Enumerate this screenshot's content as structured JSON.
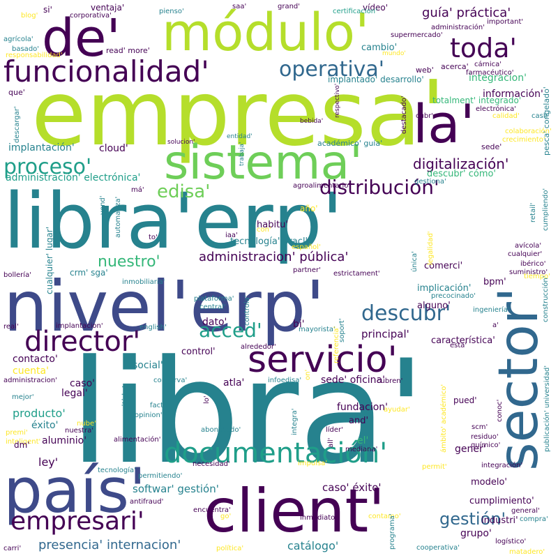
{
  "palette": {
    "deep_purple": "#440154",
    "indigo": "#3e4a89",
    "blue": "#31688e",
    "teal": "#26828e",
    "green_teal": "#1f9e89",
    "green": "#35b779",
    "light_green": "#6ece58",
    "lime": "#b5de2b",
    "yellow": "#fde725"
  },
  "words": [
    {
      "text": "libra'",
      "c": "teal"
    },
    {
      "text": "empresa'",
      "c": "lime"
    },
    {
      "text": "libra'erp'",
      "c": "teal"
    },
    {
      "text": "nivel'erp'",
      "c": "indigo"
    },
    {
      "text": "módulo'",
      "c": "lime"
    },
    {
      "text": "sector'",
      "c": "blue"
    },
    {
      "text": "client'",
      "c": "deep_purple"
    },
    {
      "text": "país'",
      "c": "indigo"
    },
    {
      "text": "de'",
      "c": "deep_purple"
    },
    {
      "text": "la'",
      "c": "deep_purple"
    },
    {
      "text": "sistema'",
      "c": "light_green"
    },
    {
      "text": "servicio'",
      "c": "deep_purple"
    },
    {
      "text": "funcionalidad'",
      "c": "deep_purple"
    },
    {
      "text": "director'",
      "c": "deep_purple"
    },
    {
      "text": "documentación'",
      "c": "green_teal"
    },
    {
      "text": "empresari'",
      "c": "deep_purple"
    },
    {
      "text": "toda'",
      "c": "deep_purple"
    },
    {
      "text": "operativa'",
      "c": "blue"
    },
    {
      "text": "proceso'",
      "c": "green_teal"
    },
    {
      "text": "distribución'",
      "c": "deep_purple"
    },
    {
      "text": "descubr'",
      "c": "blue"
    },
    {
      "text": "acced'",
      "c": "green_teal"
    },
    {
      "text": "edisa'",
      "c": "light_green"
    },
    {
      "text": "digitalización'",
      "c": "deep_purple"
    },
    {
      "text": "gestión'",
      "c": "blue"
    },
    {
      "text": "administracion' pública'",
      "c": "deep_purple"
    },
    {
      "text": "nuestro'",
      "c": "green"
    },
    {
      "text": "presencia' internacion'",
      "c": "blue"
    },
    {
      "text": "guía' práctica'",
      "c": "deep_purple"
    },
    {
      "text": "cloud'",
      "c": "deep_purple"
    },
    {
      "text": "implantación'",
      "c": "teal"
    },
    {
      "text": "administración' electrónica'",
      "c": "green_teal"
    },
    {
      "text": "información'",
      "c": "deep_purple"
    },
    {
      "text": "integracion'",
      "c": "green"
    },
    {
      "text": "totalment' integrado'",
      "c": "green"
    },
    {
      "text": "implantado' desarrollo'",
      "c": "teal"
    },
    {
      "text": "cambio'",
      "c": "teal"
    },
    {
      "text": "web'",
      "c": "deep_purple"
    },
    {
      "text": "acerca'",
      "c": "deep_purple"
    },
    {
      "text": "producto'",
      "c": "green_teal"
    },
    {
      "text": "cuenta'",
      "c": "yellow"
    },
    {
      "text": "contacto'",
      "c": "deep_purple"
    },
    {
      "text": "éxito'",
      "c": "teal"
    },
    {
      "text": "aluminio'",
      "c": "deep_purple"
    },
    {
      "text": "legal'",
      "c": "deep_purple"
    },
    {
      "text": "caso'",
      "c": "deep_purple"
    },
    {
      "text": "ley'",
      "c": "deep_purple"
    },
    {
      "text": "softwar' gestión'",
      "c": "teal"
    },
    {
      "text": "caso' éxito'",
      "c": "deep_purple"
    },
    {
      "text": "principal'",
      "c": "deep_purple"
    },
    {
      "text": "característica'",
      "c": "deep_purple"
    },
    {
      "text": "bpm'",
      "c": "deep_purple"
    },
    {
      "text": "comerci'",
      "c": "deep_purple"
    },
    {
      "text": "implicación'",
      "c": "teal"
    },
    {
      "text": "alguno'",
      "c": "deep_purple"
    },
    {
      "text": "dato'",
      "c": "deep_purple"
    },
    {
      "text": "bi'",
      "c": "deep_purple"
    },
    {
      "text": "social'",
      "c": "teal"
    },
    {
      "text": "control'",
      "c": "deep_purple"
    },
    {
      "text": "atla'",
      "c": "deep_purple"
    },
    {
      "text": "sede' oficina'",
      "c": "deep_purple"
    },
    {
      "text": "fundacion'",
      "c": "deep_purple"
    },
    {
      "text": "and'",
      "c": "deep_purple"
    },
    {
      "text": "el'",
      "c": "green"
    },
    {
      "text": "gener'",
      "c": "deep_purple"
    },
    {
      "text": "modelo'",
      "c": "deep_purple"
    },
    {
      "text": "cumplimiento'",
      "c": "deep_purple"
    },
    {
      "text": "grupo'",
      "c": "deep_purple"
    },
    {
      "text": "industri'",
      "c": "deep_purple"
    },
    {
      "text": "catálogo'",
      "c": "teal"
    },
    {
      "text": "pued'",
      "c": "deep_purple"
    },
    {
      "text": "tecnología' oracl'",
      "c": "teal"
    },
    {
      "text": "habitu'",
      "c": "deep_purple"
    },
    {
      "text": "año'",
      "c": "yellow"
    },
    {
      "text": "crm' sga'",
      "c": "teal"
    },
    {
      "text": "descubr' cómo'",
      "c": "green"
    },
    {
      "text": "sede'",
      "c": "deep_purple"
    },
    {
      "text": "agroalimentario'",
      "c": "deep_purple"
    },
    {
      "text": "académico' guía'",
      "c": "teal"
    },
    {
      "text": "solucion'",
      "c": "deep_purple"
    },
    {
      "text": "entidad'",
      "c": "teal"
    },
    {
      "text": "trabaja'",
      "c": "teal"
    },
    {
      "text": "destacado'",
      "c": "deep_purple"
    },
    {
      "text": "bebida'",
      "c": "deep_purple"
    },
    {
      "text": "vídeo'",
      "c": "deep_purple"
    },
    {
      "text": "certificacion'",
      "c": "green_teal"
    },
    {
      "text": "grand'",
      "c": "deep_purple"
    },
    {
      "text": "saa'",
      "c": "deep_purple"
    },
    {
      "text": "supermercado'",
      "c": "deep_purple"
    },
    {
      "text": "administración'",
      "c": "deep_purple"
    },
    {
      "text": "important'",
      "c": "deep_purple"
    },
    {
      "text": "pienso'",
      "c": "teal"
    },
    {
      "text": "ventaja'",
      "c": "deep_purple"
    },
    {
      "text": "corporativa'",
      "c": "deep_purple"
    },
    {
      "text": "si'",
      "c": "deep_purple"
    },
    {
      "text": "blog'",
      "c": "yellow"
    },
    {
      "text": "agrícola'",
      "c": "teal"
    },
    {
      "text": "basado'",
      "c": "teal"
    },
    {
      "text": "read' more'",
      "c": "deep_purple"
    },
    {
      "text": "responsabilidad'",
      "c": "yellow"
    },
    {
      "text": "mundo'",
      "c": "yellow"
    },
    {
      "text": "cárnica'",
      "c": "deep_purple"
    },
    {
      "text": "farmacéutico'",
      "c": "deep_purple"
    },
    {
      "text": "que'",
      "c": "deep_purple"
    },
    {
      "text": "descargar'",
      "c": "teal"
    },
    {
      "text": "respectivo'",
      "c": "deep_purple"
    },
    {
      "text": "cubr'",
      "c": "deep_purple"
    },
    {
      "text": "electrónica'",
      "c": "deep_purple"
    },
    {
      "text": "calidad'",
      "c": "yellow"
    },
    {
      "text": "cash'",
      "c": "teal"
    },
    {
      "text": "colaboración'",
      "c": "yellow"
    },
    {
      "text": "crecimiento'",
      "c": "yellow"
    },
    {
      "text": "gestiona'",
      "c": "teal"
    },
    {
      "text": "má'",
      "c": "deep_purple"
    },
    {
      "text": "vend'",
      "c": "teal"
    },
    {
      "text": "automatiza'",
      "c": "teal"
    },
    {
      "text": "iaa'",
      "c": "deep_purple"
    },
    {
      "text": "to'",
      "c": "deep_purple"
    },
    {
      "text": "con'",
      "c": "yellow"
    },
    {
      "text": "español'",
      "c": "yellow"
    },
    {
      "text": "cualquier' lugar'",
      "c": "teal"
    },
    {
      "text": "retail'",
      "c": "teal"
    },
    {
      "text": "cumpliendo'",
      "c": "teal"
    },
    {
      "text": "legalidad'",
      "c": "yellow"
    },
    {
      "text": "avícola'",
      "c": "deep_purple"
    },
    {
      "text": "cualquier'",
      "c": "deep_purple"
    },
    {
      "text": "ibérico'",
      "c": "deep_purple"
    },
    {
      "text": "suministro'",
      "c": "deep_purple"
    },
    {
      "text": "tiempo'",
      "c": "yellow"
    },
    {
      "text": "única'",
      "c": "teal"
    },
    {
      "text": "partner'",
      "c": "deep_purple"
    },
    {
      "text": "estrictament'",
      "c": "deep_purple"
    },
    {
      "text": "bollería'",
      "c": "deep_purple"
    },
    {
      "text": "inmobiliaria'",
      "c": "teal"
    },
    {
      "text": "plataforma'",
      "c": "teal"
    },
    {
      "text": "central'",
      "c": "teal"
    },
    {
      "text": "controla'",
      "c": "teal"
    },
    {
      "text": "precocinado'",
      "c": "teal"
    },
    {
      "text": "ingeniería'",
      "c": "teal"
    },
    {
      "text": "construcción'",
      "c": "teal"
    },
    {
      "text": "real'",
      "c": "deep_purple"
    },
    {
      "text": "implantacion'",
      "c": "deep_purple"
    },
    {
      "text": "english'",
      "c": "teal"
    },
    {
      "text": "mayorista'",
      "c": "teal"
    },
    {
      "text": "referencia'",
      "c": "yellow"
    },
    {
      "text": "soport'",
      "c": "teal"
    },
    {
      "text": "alrededor'",
      "c": "deep_purple"
    },
    {
      "text": "esta'",
      "c": "deep_purple"
    },
    {
      "text": "a'",
      "c": "deep_purple"
    },
    {
      "text": "administracion'",
      "c": "deep_purple"
    },
    {
      "text": "mejor'",
      "c": "teal"
    },
    {
      "text": "nube'",
      "c": "yellow"
    },
    {
      "text": "conserva'",
      "c": "teal"
    },
    {
      "text": "permitido'",
      "c": "teal"
    },
    {
      "text": "lo'",
      "c": "deep_purple"
    },
    {
      "text": "factura'",
      "c": "teal"
    },
    {
      "text": "opinion'",
      "c": "teal"
    },
    {
      "text": "infoedisa'",
      "c": "teal"
    },
    {
      "text": "on'",
      "c": "yellow"
    },
    {
      "text": "cubren'",
      "c": "deep_purple"
    },
    {
      "text": "ayudar'",
      "c": "yellow"
    },
    {
      "text": "conoc'",
      "c": "deep_purple"
    },
    {
      "text": "publicación' universidad'",
      "c": "teal"
    },
    {
      "text": "ámbito' académico'",
      "c": "yellow"
    },
    {
      "text": "scm'",
      "c": "deep_purple"
    },
    {
      "text": "residuo'",
      "c": "deep_purple"
    },
    {
      "text": "químico'",
      "c": "deep_purple"
    },
    {
      "text": "abono'",
      "c": "teal"
    },
    {
      "text": "nuestra'",
      "c": "deep_purple"
    },
    {
      "text": "premi'",
      "c": "yellow"
    },
    {
      "text": "inteligent'",
      "c": "yellow"
    },
    {
      "text": "dm'",
      "c": "deep_purple"
    },
    {
      "text": "todo'",
      "c": "teal"
    },
    {
      "text": "integra'",
      "c": "teal"
    },
    {
      "text": "líder'",
      "c": "deep_purple"
    },
    {
      "text": "all'",
      "c": "deep_purple"
    },
    {
      "text": "mediana'",
      "c": "deep_purple"
    },
    {
      "text": "alimentación'",
      "c": "deep_purple"
    },
    {
      "text": "necesidad'",
      "c": "deep_purple"
    },
    {
      "text": "tecnología'",
      "c": "teal"
    },
    {
      "text": "permitiendo'",
      "c": "teal"
    },
    {
      "text": "impulsa'",
      "c": "yellow"
    },
    {
      "text": "integración'",
      "c": "deep_purple"
    },
    {
      "text": "permit'",
      "c": "yellow"
    },
    {
      "text": "general'",
      "c": "deep_purple"
    },
    {
      "text": "compra'",
      "c": "teal"
    },
    {
      "text": "antifraud'",
      "c": "deep_purple"
    },
    {
      "text": "encuentra'",
      "c": "deep_purple"
    },
    {
      "text": "inmediato'",
      "c": "deep_purple"
    },
    {
      "text": "contamo'",
      "c": "yellow"
    },
    {
      "text": "go'",
      "c": "yellow"
    },
    {
      "text": "programa'",
      "c": "teal"
    },
    {
      "text": "carri'",
      "c": "deep_purple"
    },
    {
      "text": "política'",
      "c": "yellow"
    },
    {
      "text": "cooperativa'",
      "c": "teal"
    },
    {
      "text": "logístico'",
      "c": "deep_purple"
    },
    {
      "text": "matadero'",
      "c": "yellow"
    },
    {
      "text": "pesca' congelado'",
      "c": "teal"
    }
  ]
}
